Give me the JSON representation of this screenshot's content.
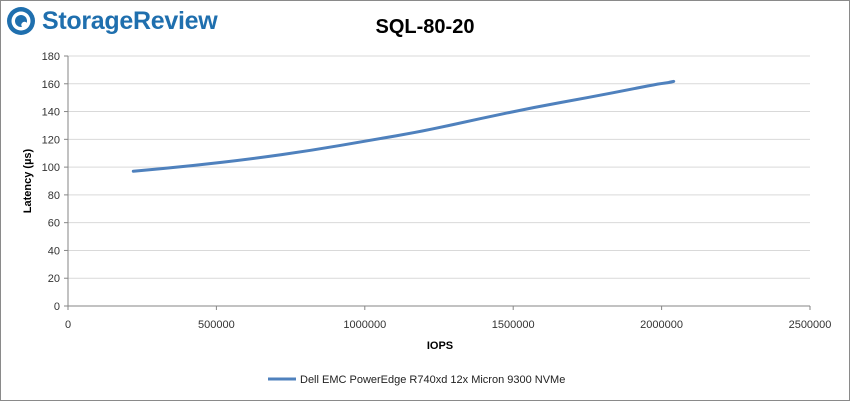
{
  "brand": {
    "name": "StorageReview",
    "color": "#1f6fae",
    "icon": "storagereview-logo-icon"
  },
  "chart_data": {
    "type": "line",
    "title": "SQL-80-20",
    "xlabel": "IOPS",
    "ylabel": "Latency (µs)",
    "xlim": [
      0,
      2500000
    ],
    "ylim": [
      0,
      180
    ],
    "x_ticks": [
      "0",
      "500000",
      "1000000",
      "1500000",
      "2000000",
      "2500000"
    ],
    "y_ticks": [
      "0",
      "20",
      "40",
      "60",
      "80",
      "100",
      "120",
      "140",
      "160",
      "180"
    ],
    "grid": true,
    "legend_position": "bottom",
    "series": [
      {
        "name": "Dell EMC PowerEdge R740xd 12x Micron 9300 NVMe",
        "color": "#4f81bd",
        "x": [
          220000,
          420000,
          620000,
          820000,
          1010000,
          1200000,
          1390000,
          1570000,
          1750000,
          1920000,
          1990000,
          2030000,
          2045000,
          2025000
        ],
        "y": [
          97,
          101,
          106,
          112,
          119,
          126,
          135,
          143,
          150,
          157,
          160,
          161,
          162,
          161
        ]
      }
    ]
  }
}
